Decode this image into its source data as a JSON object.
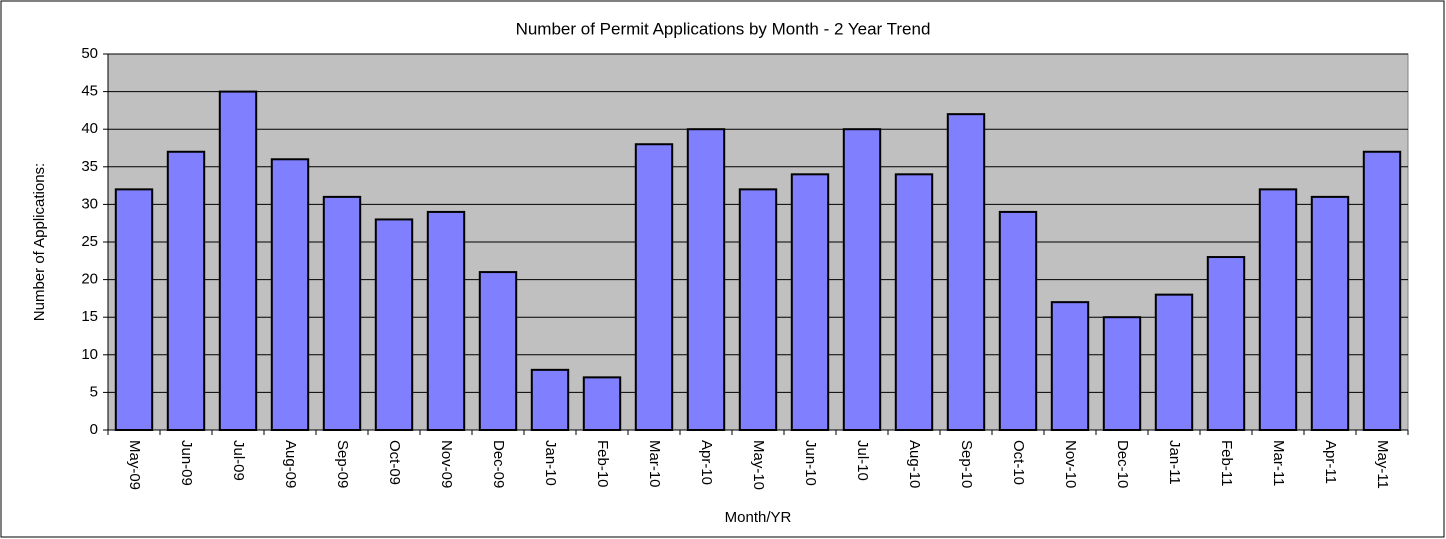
{
  "chart_data": {
    "type": "bar",
    "title": "Number of Permit Applications by Month - 2 Year Trend",
    "x_label": "Month/YR",
    "y_label": "Number of Applications:",
    "categories": [
      "May-09",
      "Jun-09",
      "Jul-09",
      "Aug-09",
      "Sep-09",
      "Oct-09",
      "Nov-09",
      "Dec-09",
      "Jan-10",
      "Feb-10",
      "Mar-10",
      "Apr-10",
      "May-10",
      "Jun-10",
      "Jul-10",
      "Aug-10",
      "Sep-10",
      "Oct-10",
      "Nov-10",
      "Dec-10",
      "Jan-11",
      "Feb-11",
      "Mar-11",
      "Apr-11",
      "May-11"
    ],
    "values": [
      32,
      37,
      45,
      36,
      31,
      28,
      29,
      21,
      8,
      7,
      38,
      40,
      32,
      34,
      40,
      34,
      42,
      29,
      17,
      15,
      18,
      23,
      32,
      31,
      37
    ],
    "color": "#8080ff",
    "ylim": [
      0,
      50
    ],
    "yticks": [
      0,
      5,
      10,
      15,
      20,
      25,
      30,
      35,
      40,
      45,
      50
    ],
    "grid": true
  }
}
